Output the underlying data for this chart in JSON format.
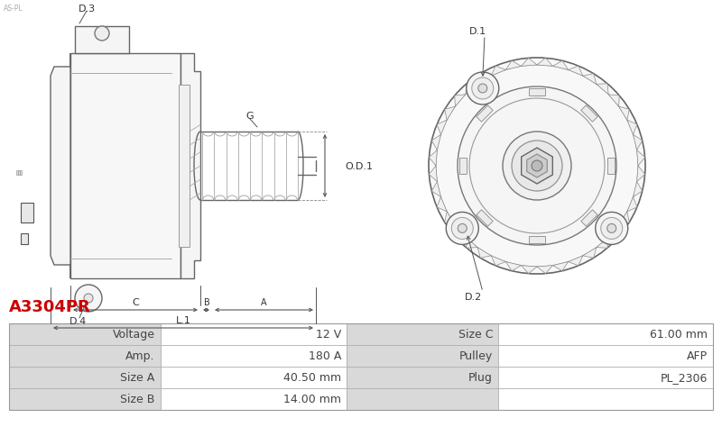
{
  "title": "A3304PR",
  "title_color": "#cc0000",
  "title_fontsize": 13,
  "bg_color": "#ffffff",
  "table_data": [
    [
      "Voltage",
      "12 V",
      "Size C",
      "61.00 mm"
    ],
    [
      "Amp.",
      "180 A",
      "Pulley",
      "AFP"
    ],
    [
      "Size A",
      "40.50 mm",
      "Plug",
      "PL_2306"
    ],
    [
      "Size B",
      "14.00 mm",
      "",
      ""
    ]
  ],
  "header_bg": "#d9d9d9",
  "row_bg_even": "#ffffff",
  "cell_text_color": "#444444",
  "border_color": "#aaaaaa",
  "table_fontsize": 9
}
